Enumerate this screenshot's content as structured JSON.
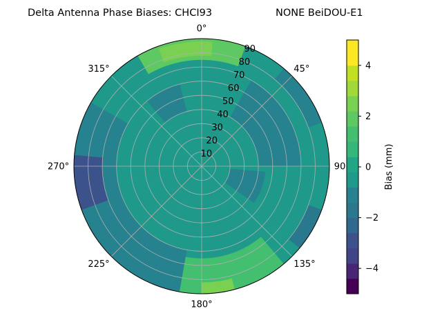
{
  "chart_data": {
    "type": "polar-contour",
    "title": "Delta Antenna Phase Biases: CHCI93",
    "subtitle": "NONE BeiDOU-E1",
    "theta_direction": "clockwise",
    "theta_zero": "top",
    "theta_tick_labels": [
      "0°",
      "45°",
      "90",
      "135°",
      "180°",
      "225°",
      "270°",
      "315°"
    ],
    "radial_ticks": [
      10,
      20,
      30,
      40,
      50,
      60,
      70,
      80,
      90
    ],
    "r_range": [
      0,
      90
    ],
    "grid": true,
    "colorbar": {
      "label": "Bias (mm)",
      "range": [
        -5,
        5
      ],
      "ticks": [
        -4,
        -2,
        0,
        2,
        4
      ],
      "levels": [
        -5,
        -4.4,
        -3.8,
        -3.2,
        -2.6,
        -2.0,
        -1.4,
        -0.8,
        -0.2,
        0.4,
        1.0,
        1.6,
        2.2,
        2.8,
        3.4,
        4.0,
        5.0
      ],
      "colors": [
        "#440154",
        "#482575",
        "#414487",
        "#3b528b",
        "#31688e",
        "#2a788e",
        "#26828e",
        "#1f9a8a",
        "#21a685",
        "#35b779",
        "#44bf70",
        "#5ec962",
        "#7ad151",
        "#9fda3a",
        "#c2df23",
        "#fde725"
      ]
    },
    "regions": [
      {
        "theta": [
          190,
          300
        ],
        "r": [
          60,
          90
        ],
        "value": -0.9
      },
      {
        "theta": [
          250,
          275
        ],
        "r": [
          70,
          90
        ],
        "value": -2.7
      },
      {
        "theta": [
          320,
          345
        ],
        "r": [
          40,
          60
        ],
        "value": -0.9
      },
      {
        "theta": [
          330,
          20
        ],
        "r": [
          75,
          90
        ],
        "value": 1.9
      },
      {
        "theta": [
          340,
          5
        ],
        "r": [
          78,
          88
        ],
        "value": 2.4
      },
      {
        "theta": [
          30,
          90
        ],
        "r": [
          40,
          70
        ],
        "value": -1.3
      },
      {
        "theta": [
          40,
          70
        ],
        "r": [
          80,
          90
        ],
        "value": -1.3
      },
      {
        "theta": [
          110,
          130
        ],
        "r": [
          80,
          90
        ],
        "value": -1.9
      },
      {
        "theta": [
          95,
          125
        ],
        "r": [
          20,
          45
        ],
        "value": -0.9
      },
      {
        "theta": [
          140,
          190
        ],
        "r": [
          65,
          90
        ],
        "value": 1.5
      },
      {
        "theta": [
          165,
          180
        ],
        "r": [
          82,
          90
        ],
        "value": 2.2
      },
      {
        "theta": [
          195,
          230
        ],
        "r": [
          80,
          90
        ],
        "value": -1.1
      }
    ]
  }
}
